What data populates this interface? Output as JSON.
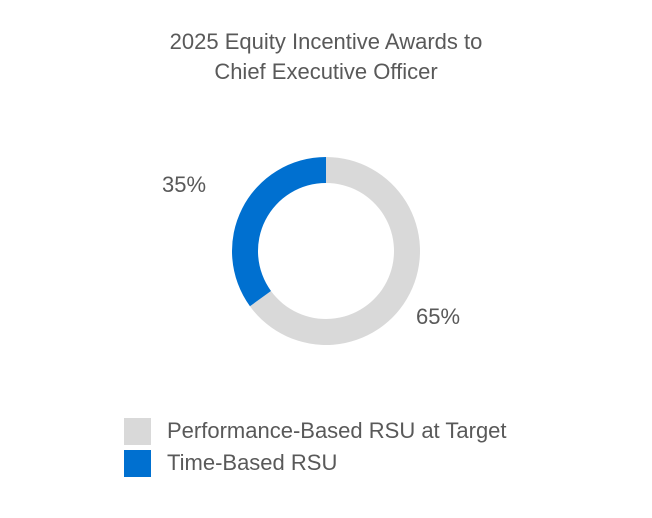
{
  "chart_data": {
    "type": "pie",
    "title_lines": [
      "2025 Equity Incentive Awards to",
      "Chief Executive Officer"
    ],
    "categories": [
      "Performance-Based RSU at Target",
      "Time-Based RSU"
    ],
    "values": [
      65,
      35
    ],
    "data_labels": [
      "65%",
      "35%"
    ],
    "colors": [
      "#D9D9D9",
      "#0070D0"
    ],
    "legend_position": "bottom"
  }
}
